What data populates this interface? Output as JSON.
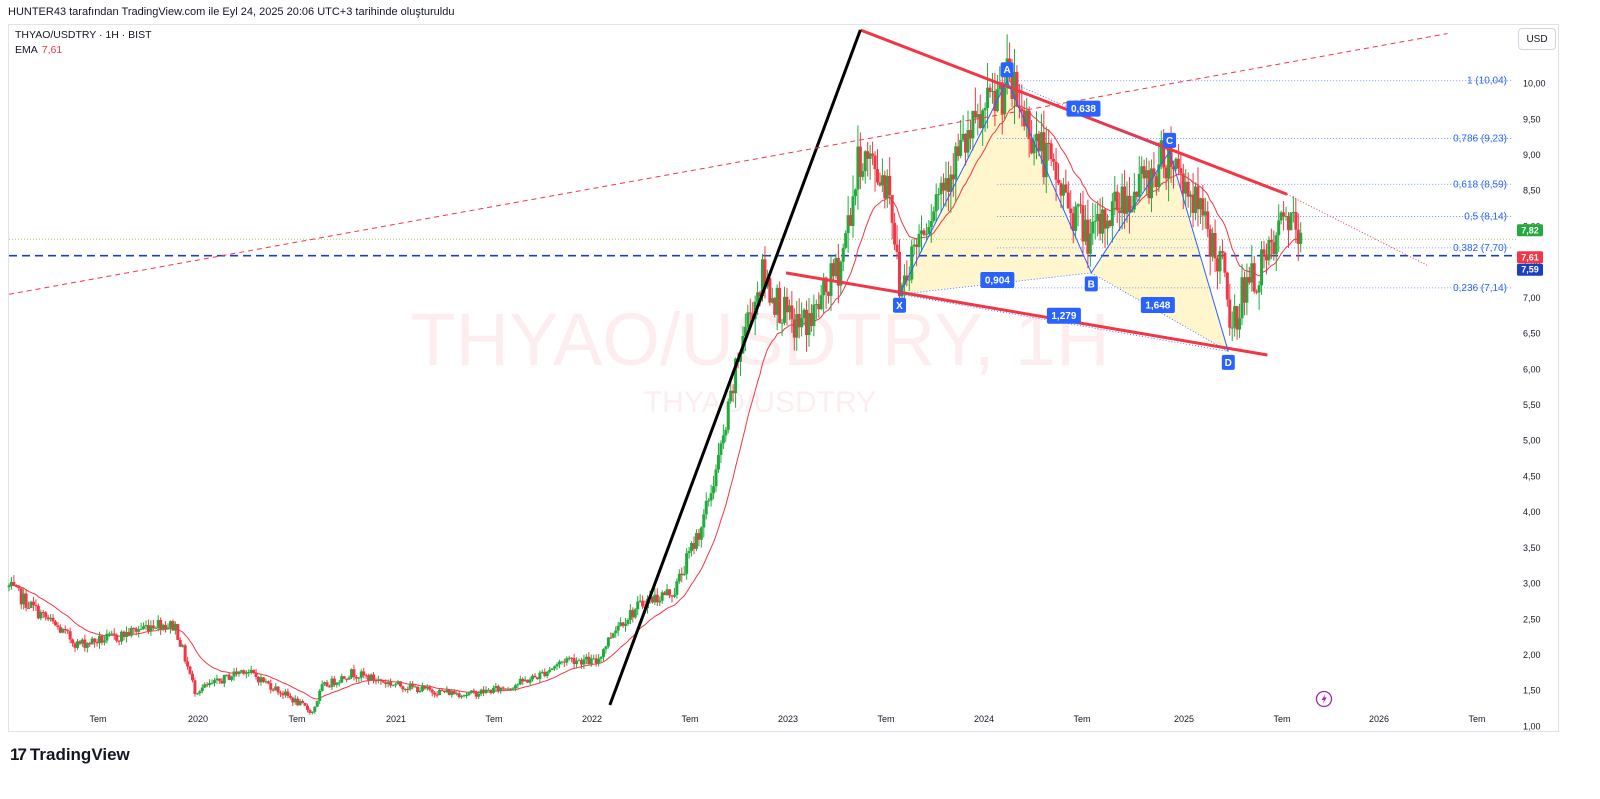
{
  "header": {
    "attribution": "HUNTER43 tarafından TradingView.com ile Eyl 24, 2025 20:06 UTC+3 tarihinde oluşturuldu"
  },
  "legend": {
    "symbol": "THYAO/USDTRY · 1H · BIST",
    "ema_label": "EMA",
    "ema_value": "7,61"
  },
  "currency_button": "USD",
  "watermark": {
    "main": "THYAO/USDTRY, 1H",
    "sub": "THYAO/USDTRY"
  },
  "footer": {
    "brand": "TradingView",
    "logo_mark": "17"
  },
  "colors": {
    "up": "#22ab3c",
    "down": "#f23645",
    "ema": "#f23645",
    "pattern_line": "#2962ff",
    "pattern_fill": "#fff4c4",
    "trend_red": "#f23645",
    "trend_black": "#000000",
    "hline_blue": "#1a3fbf"
  },
  "chart_data": {
    "type": "candlestick",
    "symbol": "THYAO/USDTRY",
    "y_range": [
      0.95,
      10.75
    ],
    "y_ticks": [
      "1,00",
      "1,50",
      "2,00",
      "2,50",
      "3,00",
      "3,50",
      "4,00",
      "4,50",
      "5,00",
      "5,50",
      "6,00",
      "6,50",
      "7,00",
      "7,50",
      "8,00",
      "8,50",
      "9,00",
      "9,50",
      "10,00"
    ],
    "x_ticks": [
      "Tem",
      "2020",
      "Tem",
      "2021",
      "Tem",
      "2022",
      "Tem",
      "2023",
      "Tem",
      "2024",
      "Tem",
      "2025",
      "Tem",
      "2026",
      "Tem"
    ],
    "price_path": [
      {
        "t": 2019.25,
        "p": 2.95
      },
      {
        "t": 2019.4,
        "p": 2.6
      },
      {
        "t": 2019.6,
        "p": 2.15
      },
      {
        "t": 2019.8,
        "p": 2.25
      },
      {
        "t": 2020.0,
        "p": 2.45
      },
      {
        "t": 2020.1,
        "p": 2.4
      },
      {
        "t": 2020.2,
        "p": 1.5
      },
      {
        "t": 2020.3,
        "p": 1.6
      },
      {
        "t": 2020.45,
        "p": 1.8
      },
      {
        "t": 2020.6,
        "p": 1.55
      },
      {
        "t": 2020.8,
        "p": 1.2
      },
      {
        "t": 2020.85,
        "p": 1.55
      },
      {
        "t": 2021.0,
        "p": 1.75
      },
      {
        "t": 2021.2,
        "p": 1.6
      },
      {
        "t": 2021.4,
        "p": 1.5
      },
      {
        "t": 2021.6,
        "p": 1.45
      },
      {
        "t": 2021.8,
        "p": 1.55
      },
      {
        "t": 2021.95,
        "p": 1.7
      },
      {
        "t": 2022.1,
        "p": 1.95
      },
      {
        "t": 2022.25,
        "p": 1.9
      },
      {
        "t": 2022.35,
        "p": 2.4
      },
      {
        "t": 2022.5,
        "p": 2.75
      },
      {
        "t": 2022.65,
        "p": 2.9
      },
      {
        "t": 2022.8,
        "p": 3.9
      },
      {
        "t": 2022.9,
        "p": 5.0
      },
      {
        "t": 2023.0,
        "p": 6.5
      },
      {
        "t": 2023.1,
        "p": 7.3
      },
      {
        "t": 2023.25,
        "p": 6.6
      },
      {
        "t": 2023.35,
        "p": 6.7
      },
      {
        "t": 2023.5,
        "p": 7.5
      },
      {
        "t": 2023.6,
        "p": 9.0
      },
      {
        "t": 2023.75,
        "p": 8.6
      },
      {
        "t": 2023.8,
        "p": 7.1
      },
      {
        "t": 2023.9,
        "p": 7.9
      },
      {
        "t": 2024.05,
        "p": 8.8
      },
      {
        "t": 2024.2,
        "p": 9.4
      },
      {
        "t": 2024.35,
        "p": 10.04
      },
      {
        "t": 2024.5,
        "p": 9.2
      },
      {
        "t": 2024.65,
        "p": 8.4
      },
      {
        "t": 2024.78,
        "p": 7.8
      },
      {
        "t": 2024.9,
        "p": 8.3
      },
      {
        "t": 2025.05,
        "p": 8.6
      },
      {
        "t": 2025.18,
        "p": 9.05
      },
      {
        "t": 2025.3,
        "p": 8.4
      },
      {
        "t": 2025.45,
        "p": 7.4
      },
      {
        "t": 2025.5,
        "p": 6.5
      },
      {
        "t": 2025.55,
        "p": 7.1
      },
      {
        "t": 2025.62,
        "p": 7.3
      },
      {
        "t": 2025.7,
        "p": 7.6
      },
      {
        "t": 2025.78,
        "p": 8.2
      },
      {
        "t": 2025.85,
        "p": 7.7
      }
    ],
    "ema": {
      "name": "EMA",
      "last": 7.61
    },
    "harmonic_pattern": {
      "points": [
        {
          "label": "X",
          "t": 2023.8,
          "p": 7.05
        },
        {
          "label": "A",
          "t": 2024.35,
          "p": 10.04
        },
        {
          "label": "B",
          "t": 2024.78,
          "p": 7.35
        },
        {
          "label": "C",
          "t": 2025.18,
          "p": 9.05
        },
        {
          "label": "D",
          "t": 2025.48,
          "p": 6.25
        }
      ],
      "ratios": [
        {
          "label": "0,638",
          "t": 2024.74,
          "p": 9.65
        },
        {
          "label": "0,904",
          "t": 2024.3,
          "p": 7.25
        },
        {
          "label": "1,648",
          "t": 2025.12,
          "p": 6.9
        },
        {
          "label": "1,279",
          "t": 2024.64,
          "p": 6.75
        }
      ]
    },
    "fib_levels": [
      {
        "label": "1 (10,04)",
        "value": 10.04
      },
      {
        "label": "0,786 (9,23)",
        "value": 9.23
      },
      {
        "label": "0,618 (8,59)",
        "value": 8.59
      },
      {
        "label": "0,5 (8,14)",
        "value": 8.14
      },
      {
        "label": "0,382 (7,70)",
        "value": 7.7
      },
      {
        "label": "0,236 (7,14)",
        "value": 7.14
      }
    ],
    "price_labels": [
      {
        "label": "7,82",
        "value": 7.82,
        "color": "#22ab3c"
      },
      {
        "label": "7,61",
        "value": 7.61,
        "color": "#f23645"
      },
      {
        "label": "7,59",
        "value": 7.59,
        "color": "#1a3fbf"
      }
    ],
    "horizontal_lines": [
      {
        "value": 7.59,
        "style": "dashed",
        "color": "#1a3fbf"
      },
      {
        "value": 7.82,
        "style": "dotted",
        "color": "#9bd06e"
      }
    ],
    "trendlines": [
      {
        "name": "upper-wedge",
        "from": {
          "t": 2023.6,
          "p": 10.75
        },
        "to": {
          "t": 2025.78,
          "p": 8.45
        },
        "ext": {
          "t": 2026.5,
          "p": 7.45
        }
      },
      {
        "name": "lower-wedge",
        "from": {
          "t": 2023.22,
          "p": 7.35
        },
        "to": {
          "t": 2025.68,
          "p": 6.2
        }
      },
      {
        "name": "steep-support",
        "from": {
          "t": 2022.32,
          "p": 1.3
        },
        "to": {
          "t": 2023.6,
          "p": 10.75
        }
      },
      {
        "name": "long-term-dashed",
        "from": {
          "t": 2019.25,
          "p": 7.05
        },
        "to": {
          "t": 2026.6,
          "p": 10.7
        }
      }
    ]
  }
}
